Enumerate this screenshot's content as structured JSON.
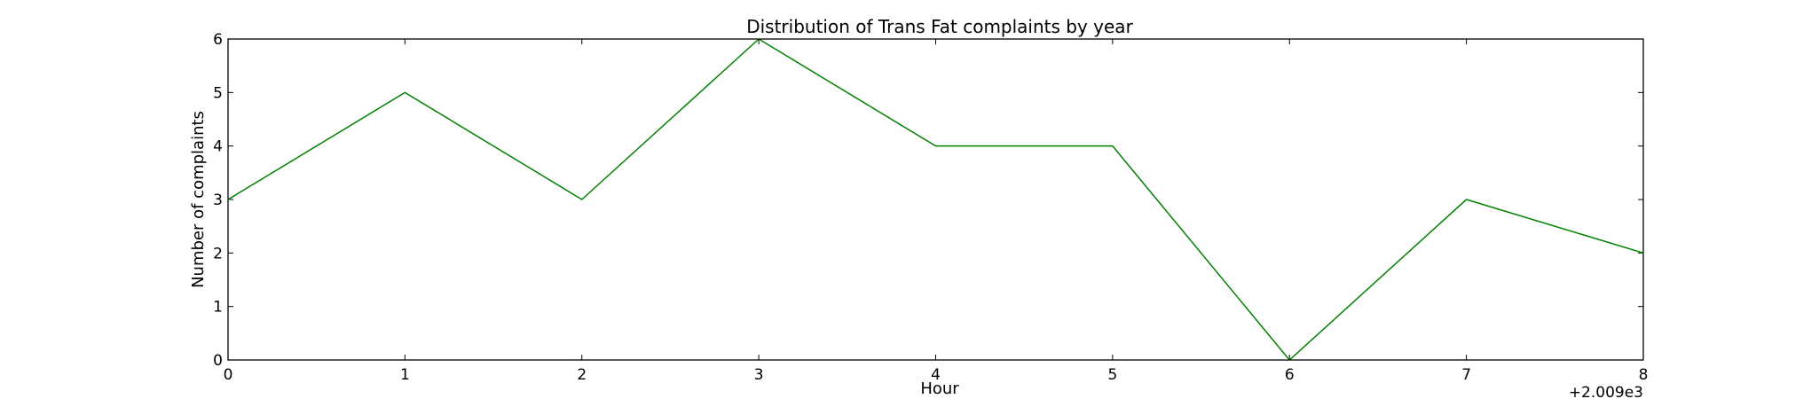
{
  "chart_data": {
    "type": "line",
    "title": "Distribution of  Trans Fat complaints by year",
    "xlabel": "Hour",
    "ylabel": "Number of complaints",
    "x_offset_label": "+2.009e3",
    "x_tick_labels": [
      "0",
      "1",
      "2",
      "3",
      "4",
      "5",
      "6",
      "7",
      "8"
    ],
    "y_tick_labels": [
      "0",
      "1",
      "2",
      "3",
      "4",
      "5",
      "6"
    ],
    "x": [
      2009,
      2010,
      2011,
      2012,
      2013,
      2014,
      2015,
      2016,
      2017
    ],
    "series": [
      {
        "values": [
          3,
          5,
          3,
          6,
          4,
          4,
          0,
          3,
          2
        ],
        "color": "#008000"
      }
    ],
    "xlim": [
      2009,
      2017
    ],
    "ylim": [
      0,
      6
    ],
    "grid": false,
    "legend": "none"
  }
}
